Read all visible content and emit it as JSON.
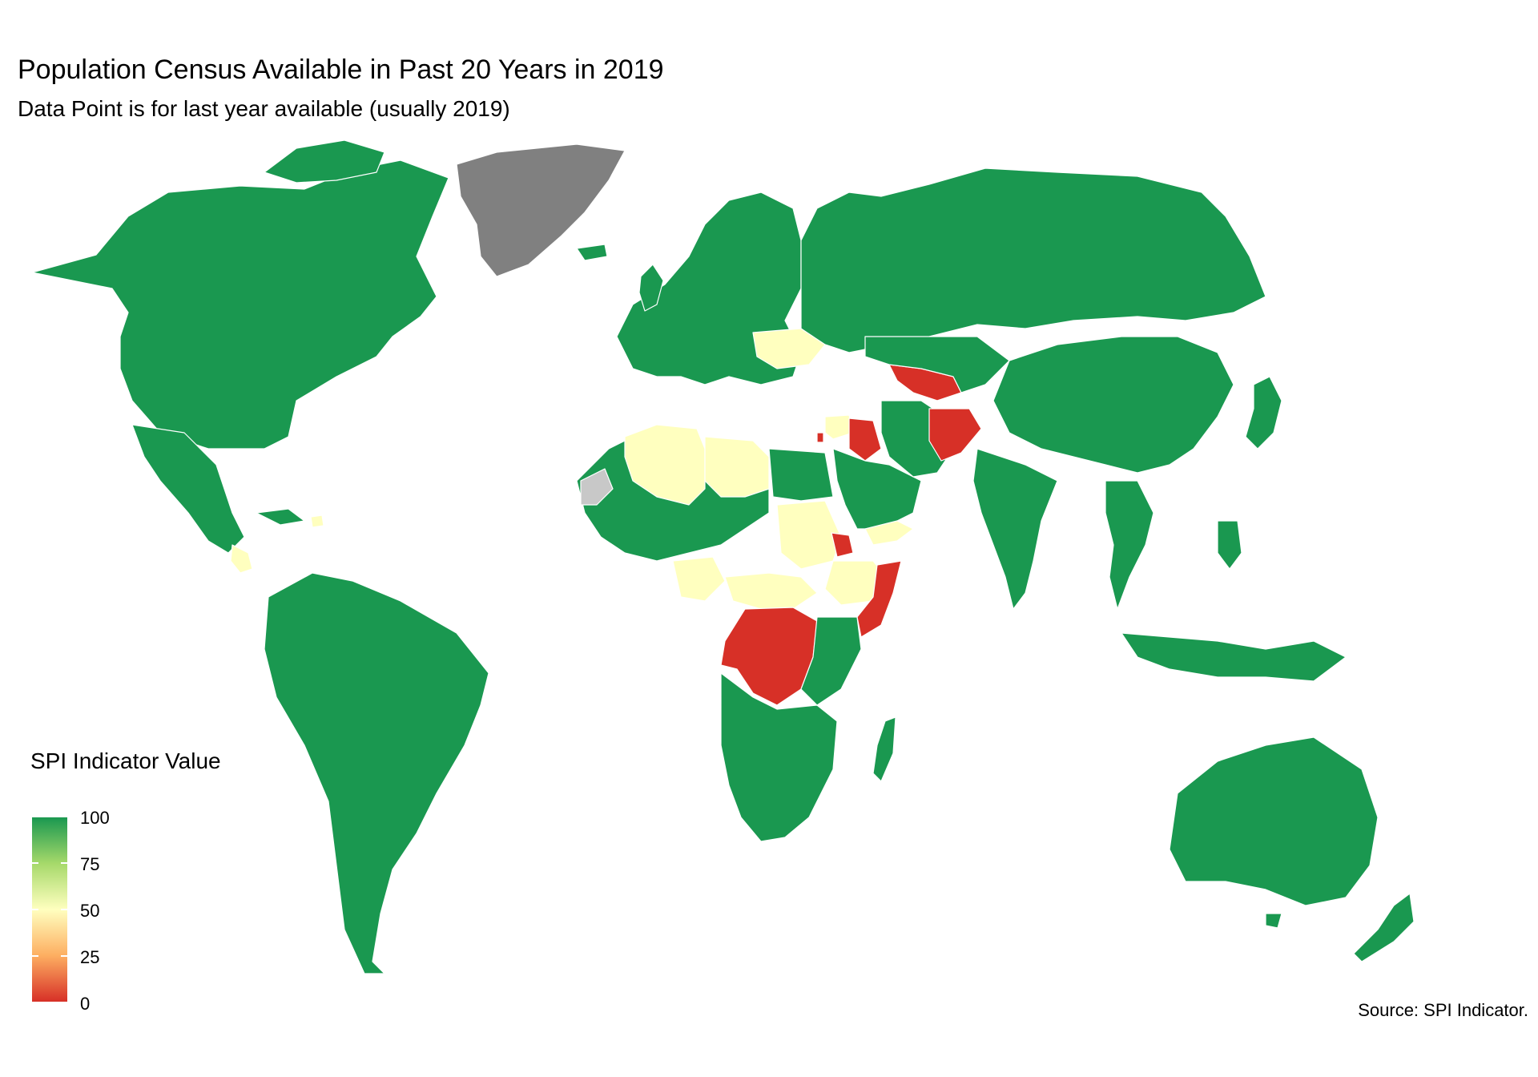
{
  "title": "Population Census Available in Past 20 Years in 2019",
  "subtitle": "Data Point is for last year available (usually 2019)",
  "caption": "Source: SPI Indicator.",
  "legend": {
    "title": "SPI Indicator Value",
    "ticks": [
      "100",
      "75",
      "50",
      "25",
      "0"
    ]
  },
  "colors": {
    "high": "#1a9850",
    "mid": "#ffffbf",
    "low": "#d73027",
    "no_data": "#808080",
    "missing": "#c8c8c8",
    "border": "#ffffff"
  },
  "map_data": {
    "type": "choropleth",
    "indicator": "SPI Indicator Value",
    "scale": [
      0,
      100
    ],
    "regions": [
      {
        "name": "North America",
        "value": 100
      },
      {
        "name": "Greenland",
        "value": null
      },
      {
        "name": "Central America",
        "value": 100
      },
      {
        "name": "Nicaragua",
        "value": 50
      },
      {
        "name": "Haiti",
        "value": 50
      },
      {
        "name": "South America",
        "value": 100
      },
      {
        "name": "Western Sahara",
        "value": null
      },
      {
        "name": "Algeria",
        "value": 50
      },
      {
        "name": "Libya",
        "value": 50
      },
      {
        "name": "Egypt",
        "value": 100
      },
      {
        "name": "Sudan",
        "value": 50
      },
      {
        "name": "Chad",
        "value": 100
      },
      {
        "name": "Nigeria",
        "value": 50
      },
      {
        "name": "Central African Republic",
        "value": 50
      },
      {
        "name": "South Sudan",
        "value": 50
      },
      {
        "name": "Ethiopia",
        "value": 50
      },
      {
        "name": "Yemen",
        "value": 50
      },
      {
        "name": "Eritrea",
        "value": 0
      },
      {
        "name": "Somalia",
        "value": 0
      },
      {
        "name": "DR Congo",
        "value": 0
      },
      {
        "name": "Southern Africa",
        "value": 100
      },
      {
        "name": "Madagascar",
        "value": 100
      },
      {
        "name": "Europe",
        "value": 100
      },
      {
        "name": "Ukraine",
        "value": 50
      },
      {
        "name": "Syria",
        "value": 50
      },
      {
        "name": "Lebanon",
        "value": 0
      },
      {
        "name": "Iraq",
        "value": 0
      },
      {
        "name": "Saudi Arabia",
        "value": 100
      },
      {
        "name": "Iran",
        "value": 100
      },
      {
        "name": "Uzbekistan",
        "value": 0
      },
      {
        "name": "Afghanistan",
        "value": 0
      },
      {
        "name": "Russia",
        "value": 100
      },
      {
        "name": "China",
        "value": 100
      },
      {
        "name": "India",
        "value": 100
      },
      {
        "name": "Southeast Asia",
        "value": 100
      },
      {
        "name": "Japan",
        "value": 100
      },
      {
        "name": "Australia",
        "value": 100
      },
      {
        "name": "New Zealand",
        "value": 100
      }
    ]
  }
}
